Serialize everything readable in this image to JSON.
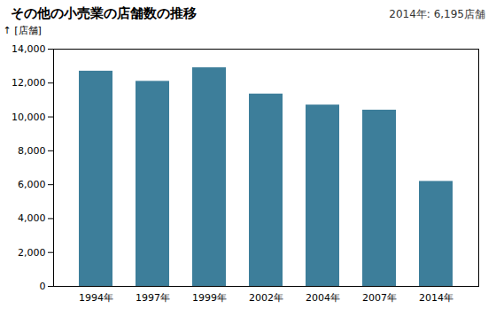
{
  "chart_data": {
    "type": "bar",
    "title": "その他の小売業の店舗数の推移",
    "ylabel": "[店舗]",
    "categories": [
      "1994年",
      "1997年",
      "1999年",
      "2002年",
      "2004年",
      "2007年",
      "2014年"
    ],
    "values": [
      12700,
      12100,
      12900,
      11350,
      10700,
      10400,
      6195
    ],
    "color": "#3d7e9a",
    "ylim": [
      0,
      14000
    ],
    "yticks": [
      0,
      {
        "value": 2000,
        "label": "2,000"
      },
      {
        "value": 4000,
        "label": "4,000"
      },
      {
        "value": 6000,
        "label": "6,000"
      },
      {
        "value": 8000,
        "label": "8,000"
      },
      {
        "value": 10000,
        "label": "10,000"
      },
      {
        "value": 12000,
        "label": "12,000"
      },
      {
        "value": 14000,
        "label": "14,000"
      }
    ],
    "annotation": "2014年: 6,195店舗",
    "grid": false
  }
}
